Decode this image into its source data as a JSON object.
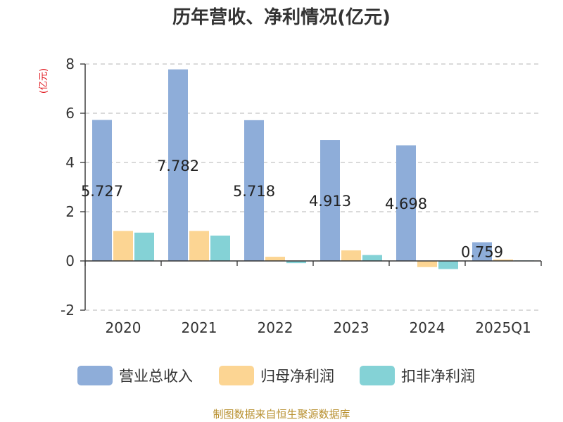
{
  "chart_data": {
    "type": "bar",
    "title": "历年营收、净利情况(亿元)",
    "ylabel": "(亿元)",
    "categories": [
      "2020",
      "2021",
      "2022",
      "2023",
      "2024",
      "2025Q1"
    ],
    "ylim": [
      -2,
      8
    ],
    "yticks": [
      -2,
      0,
      2,
      4,
      6,
      8
    ],
    "grid": true,
    "legend_position": "bottom",
    "series": [
      {
        "name": "营业总收入",
        "color": "#8eadd9",
        "values": [
          5.727,
          7.782,
          5.718,
          4.913,
          4.698,
          0.759
        ],
        "data_labels": [
          "5.727",
          "7.782",
          "5.718",
          "4.913",
          "4.698",
          "0.759"
        ]
      },
      {
        "name": "归母净利润",
        "color": "#fcd593",
        "values": [
          1.22,
          1.22,
          0.17,
          0.43,
          -0.25,
          0.06
        ]
      },
      {
        "name": "扣非净利润",
        "color": "#84d2d6",
        "values": [
          1.15,
          1.03,
          -0.09,
          0.24,
          -0.33,
          0.02
        ]
      }
    ]
  },
  "source": "制图数据来自恒生聚源数据库"
}
